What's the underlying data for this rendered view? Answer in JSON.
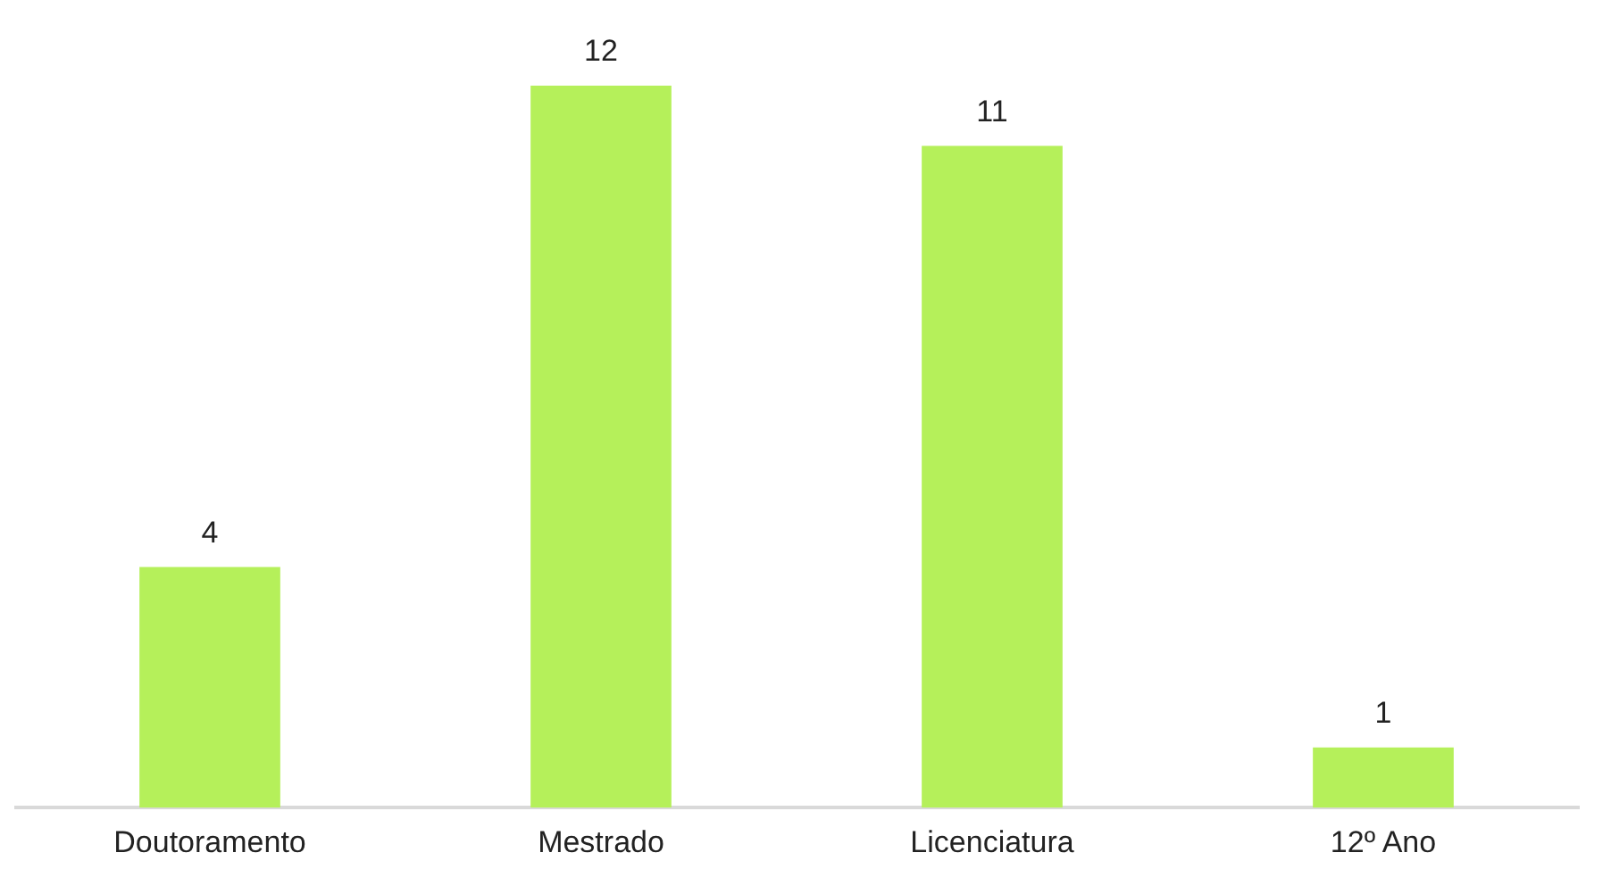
{
  "chart_data": {
    "type": "bar",
    "categories": [
      "Doutoramento",
      "Mestrado",
      "Licenciatura",
      "12º Ano"
    ],
    "values": [
      4,
      12,
      11,
      1
    ],
    "color": "#b5f05a",
    "data_labels": true,
    "grid": false,
    "legend": false
  }
}
